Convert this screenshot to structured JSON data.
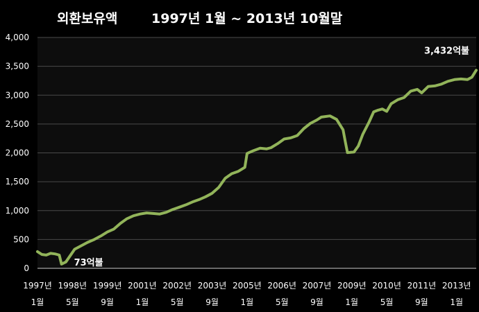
{
  "title": "외환보유액",
  "subtitle": "1997년 1월 ~ 2013년 10월말",
  "colors": {
    "background": "#000000",
    "plot_bg": "#0d0d0d",
    "line": "#92b45a",
    "grid": "#4a4a4a",
    "text": "#ffffff"
  },
  "chart_data": {
    "type": "line",
    "title": "외환보유액",
    "subtitle": "1997년 1월 ~ 2013년 10월말",
    "xlabel": "",
    "ylabel": "",
    "ylim": [
      0,
      4000
    ],
    "yticks": [
      0,
      500,
      1000,
      1500,
      2000,
      2500,
      3000,
      3500,
      4000
    ],
    "ytick_labels": [
      "0",
      "500",
      "1,000",
      "1,500",
      "2,000",
      "2,500",
      "3,000",
      "3,500",
      "4,000"
    ],
    "grid": true,
    "legend": "none",
    "x_range": [
      "1997-01",
      "2013-10"
    ],
    "xtick_labels": [
      {
        "at": "1997-01",
        "year": "1997년",
        "month": "1월"
      },
      {
        "at": "1998-05",
        "year": "1998년",
        "month": "5월"
      },
      {
        "at": "1999-09",
        "year": "1999년",
        "month": "9월"
      },
      {
        "at": "2001-01",
        "year": "2001년",
        "month": "1월"
      },
      {
        "at": "2002-05",
        "year": "2002년",
        "month": "5월"
      },
      {
        "at": "2003-09",
        "year": "2003년",
        "month": "9월"
      },
      {
        "at": "2005-01",
        "year": "2005년",
        "month": "1월"
      },
      {
        "at": "2006-05",
        "year": "2006년",
        "month": "5월"
      },
      {
        "at": "2007-09",
        "year": "2007년",
        "month": "9월"
      },
      {
        "at": "2009-01",
        "year": "2009년",
        "month": "1월"
      },
      {
        "at": "2010-05",
        "year": "2010년",
        "month": "5월"
      },
      {
        "at": "2011-09",
        "year": "2011년",
        "month": "9월"
      },
      {
        "at": "2013-01",
        "year": "2013년",
        "month": "1월"
      }
    ],
    "series": [
      {
        "values": [
          [
            "1997-01",
            290
          ],
          [
            "1997-03",
            240
          ],
          [
            "1997-05",
            230
          ],
          [
            "1997-07",
            260
          ],
          [
            "1997-09",
            250
          ],
          [
            "1997-10",
            240
          ],
          [
            "1997-11",
            230
          ],
          [
            "1997-12",
            73
          ],
          [
            "1998-02",
            110
          ],
          [
            "1998-04",
            220
          ],
          [
            "1998-06",
            330
          ],
          [
            "1998-09",
            390
          ],
          [
            "1998-12",
            450
          ],
          [
            "1999-03",
            500
          ],
          [
            "1999-06",
            560
          ],
          [
            "1999-09",
            630
          ],
          [
            "1999-12",
            680
          ],
          [
            "2000-03",
            780
          ],
          [
            "2000-06",
            860
          ],
          [
            "2000-09",
            910
          ],
          [
            "2000-12",
            940
          ],
          [
            "2001-03",
            960
          ],
          [
            "2001-06",
            950
          ],
          [
            "2001-09",
            940
          ],
          [
            "2001-12",
            970
          ],
          [
            "2002-03",
            1020
          ],
          [
            "2002-06",
            1060
          ],
          [
            "2002-09",
            1100
          ],
          [
            "2002-12",
            1150
          ],
          [
            "2003-03",
            1190
          ],
          [
            "2003-06",
            1240
          ],
          [
            "2003-09",
            1300
          ],
          [
            "2003-12",
            1400
          ],
          [
            "2004-03",
            1560
          ],
          [
            "2004-06",
            1640
          ],
          [
            "2004-09",
            1680
          ],
          [
            "2004-12",
            1750
          ],
          [
            "2005-01",
            1990
          ],
          [
            "2005-04",
            2040
          ],
          [
            "2005-07",
            2080
          ],
          [
            "2005-10",
            2070
          ],
          [
            "2005-12",
            2090
          ],
          [
            "2006-03",
            2160
          ],
          [
            "2006-06",
            2240
          ],
          [
            "2006-09",
            2260
          ],
          [
            "2006-12",
            2300
          ],
          [
            "2007-03",
            2420
          ],
          [
            "2007-06",
            2510
          ],
          [
            "2007-09",
            2570
          ],
          [
            "2007-11",
            2620
          ],
          [
            "2008-03",
            2640
          ],
          [
            "2008-06",
            2580
          ],
          [
            "2008-09",
            2400
          ],
          [
            "2008-10",
            2200
          ],
          [
            "2008-11",
            2005
          ],
          [
            "2009-02",
            2015
          ],
          [
            "2009-04",
            2120
          ],
          [
            "2009-06",
            2320
          ],
          [
            "2009-09",
            2540
          ],
          [
            "2009-11",
            2710
          ],
          [
            "2010-01",
            2740
          ],
          [
            "2010-03",
            2760
          ],
          [
            "2010-05",
            2720
          ],
          [
            "2010-07",
            2850
          ],
          [
            "2010-10",
            2920
          ],
          [
            "2011-01",
            2960
          ],
          [
            "2011-04",
            3070
          ],
          [
            "2011-07",
            3100
          ],
          [
            "2011-09",
            3040
          ],
          [
            "2011-12",
            3150
          ],
          [
            "2012-03",
            3160
          ],
          [
            "2012-06",
            3190
          ],
          [
            "2012-09",
            3240
          ],
          [
            "2012-12",
            3270
          ],
          [
            "2013-03",
            3280
          ],
          [
            "2013-06",
            3270
          ],
          [
            "2013-08",
            3310
          ],
          [
            "2013-10",
            3432
          ]
        ]
      }
    ],
    "annotations": [
      {
        "text": "73억불",
        "at": "1997-12",
        "value": 73
      },
      {
        "text": "3,432억불",
        "at": "2013-10",
        "value": 3432
      }
    ]
  }
}
